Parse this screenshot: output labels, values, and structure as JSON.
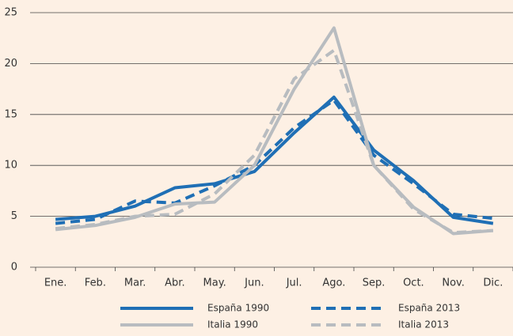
{
  "chart_data": {
    "type": "line",
    "categories": [
      "Ene.",
      "Feb.",
      "Mar.",
      "Abr.",
      "May.",
      "Jun.",
      "Jul.",
      "Ago.",
      "Sep.",
      "Oct.",
      "Nov.",
      "Dic."
    ],
    "series": [
      {
        "name": "España 1990",
        "color": "#1f6fb5",
        "style": "solid",
        "values": [
          4.7,
          5.0,
          6.0,
          7.8,
          8.2,
          9.4,
          13.2,
          16.7,
          11.5,
          8.5,
          4.9,
          4.3
        ]
      },
      {
        "name": "España 2013",
        "color": "#1f6fb5",
        "style": "dashed",
        "values": [
          4.3,
          4.7,
          6.5,
          6.3,
          8.0,
          10.0,
          13.7,
          16.4,
          11.0,
          8.2,
          5.2,
          4.8
        ]
      },
      {
        "name": "Italia 1990",
        "color": "#b8bcc0",
        "style": "solid",
        "values": [
          3.7,
          4.1,
          4.9,
          6.2,
          6.4,
          10.0,
          17.5,
          23.5,
          10.0,
          5.9,
          3.3,
          3.6
        ]
      },
      {
        "name": "Italia 2013",
        "color": "#b8bcc0",
        "style": "dashed",
        "values": [
          3.8,
          4.2,
          5.0,
          5.2,
          7.2,
          11.0,
          18.5,
          21.3,
          10.0,
          5.7,
          3.4,
          3.6
        ]
      }
    ],
    "ylim": [
      0,
      25
    ],
    "yticks": [
      0,
      5,
      10,
      15,
      20,
      25
    ],
    "grid": true
  }
}
